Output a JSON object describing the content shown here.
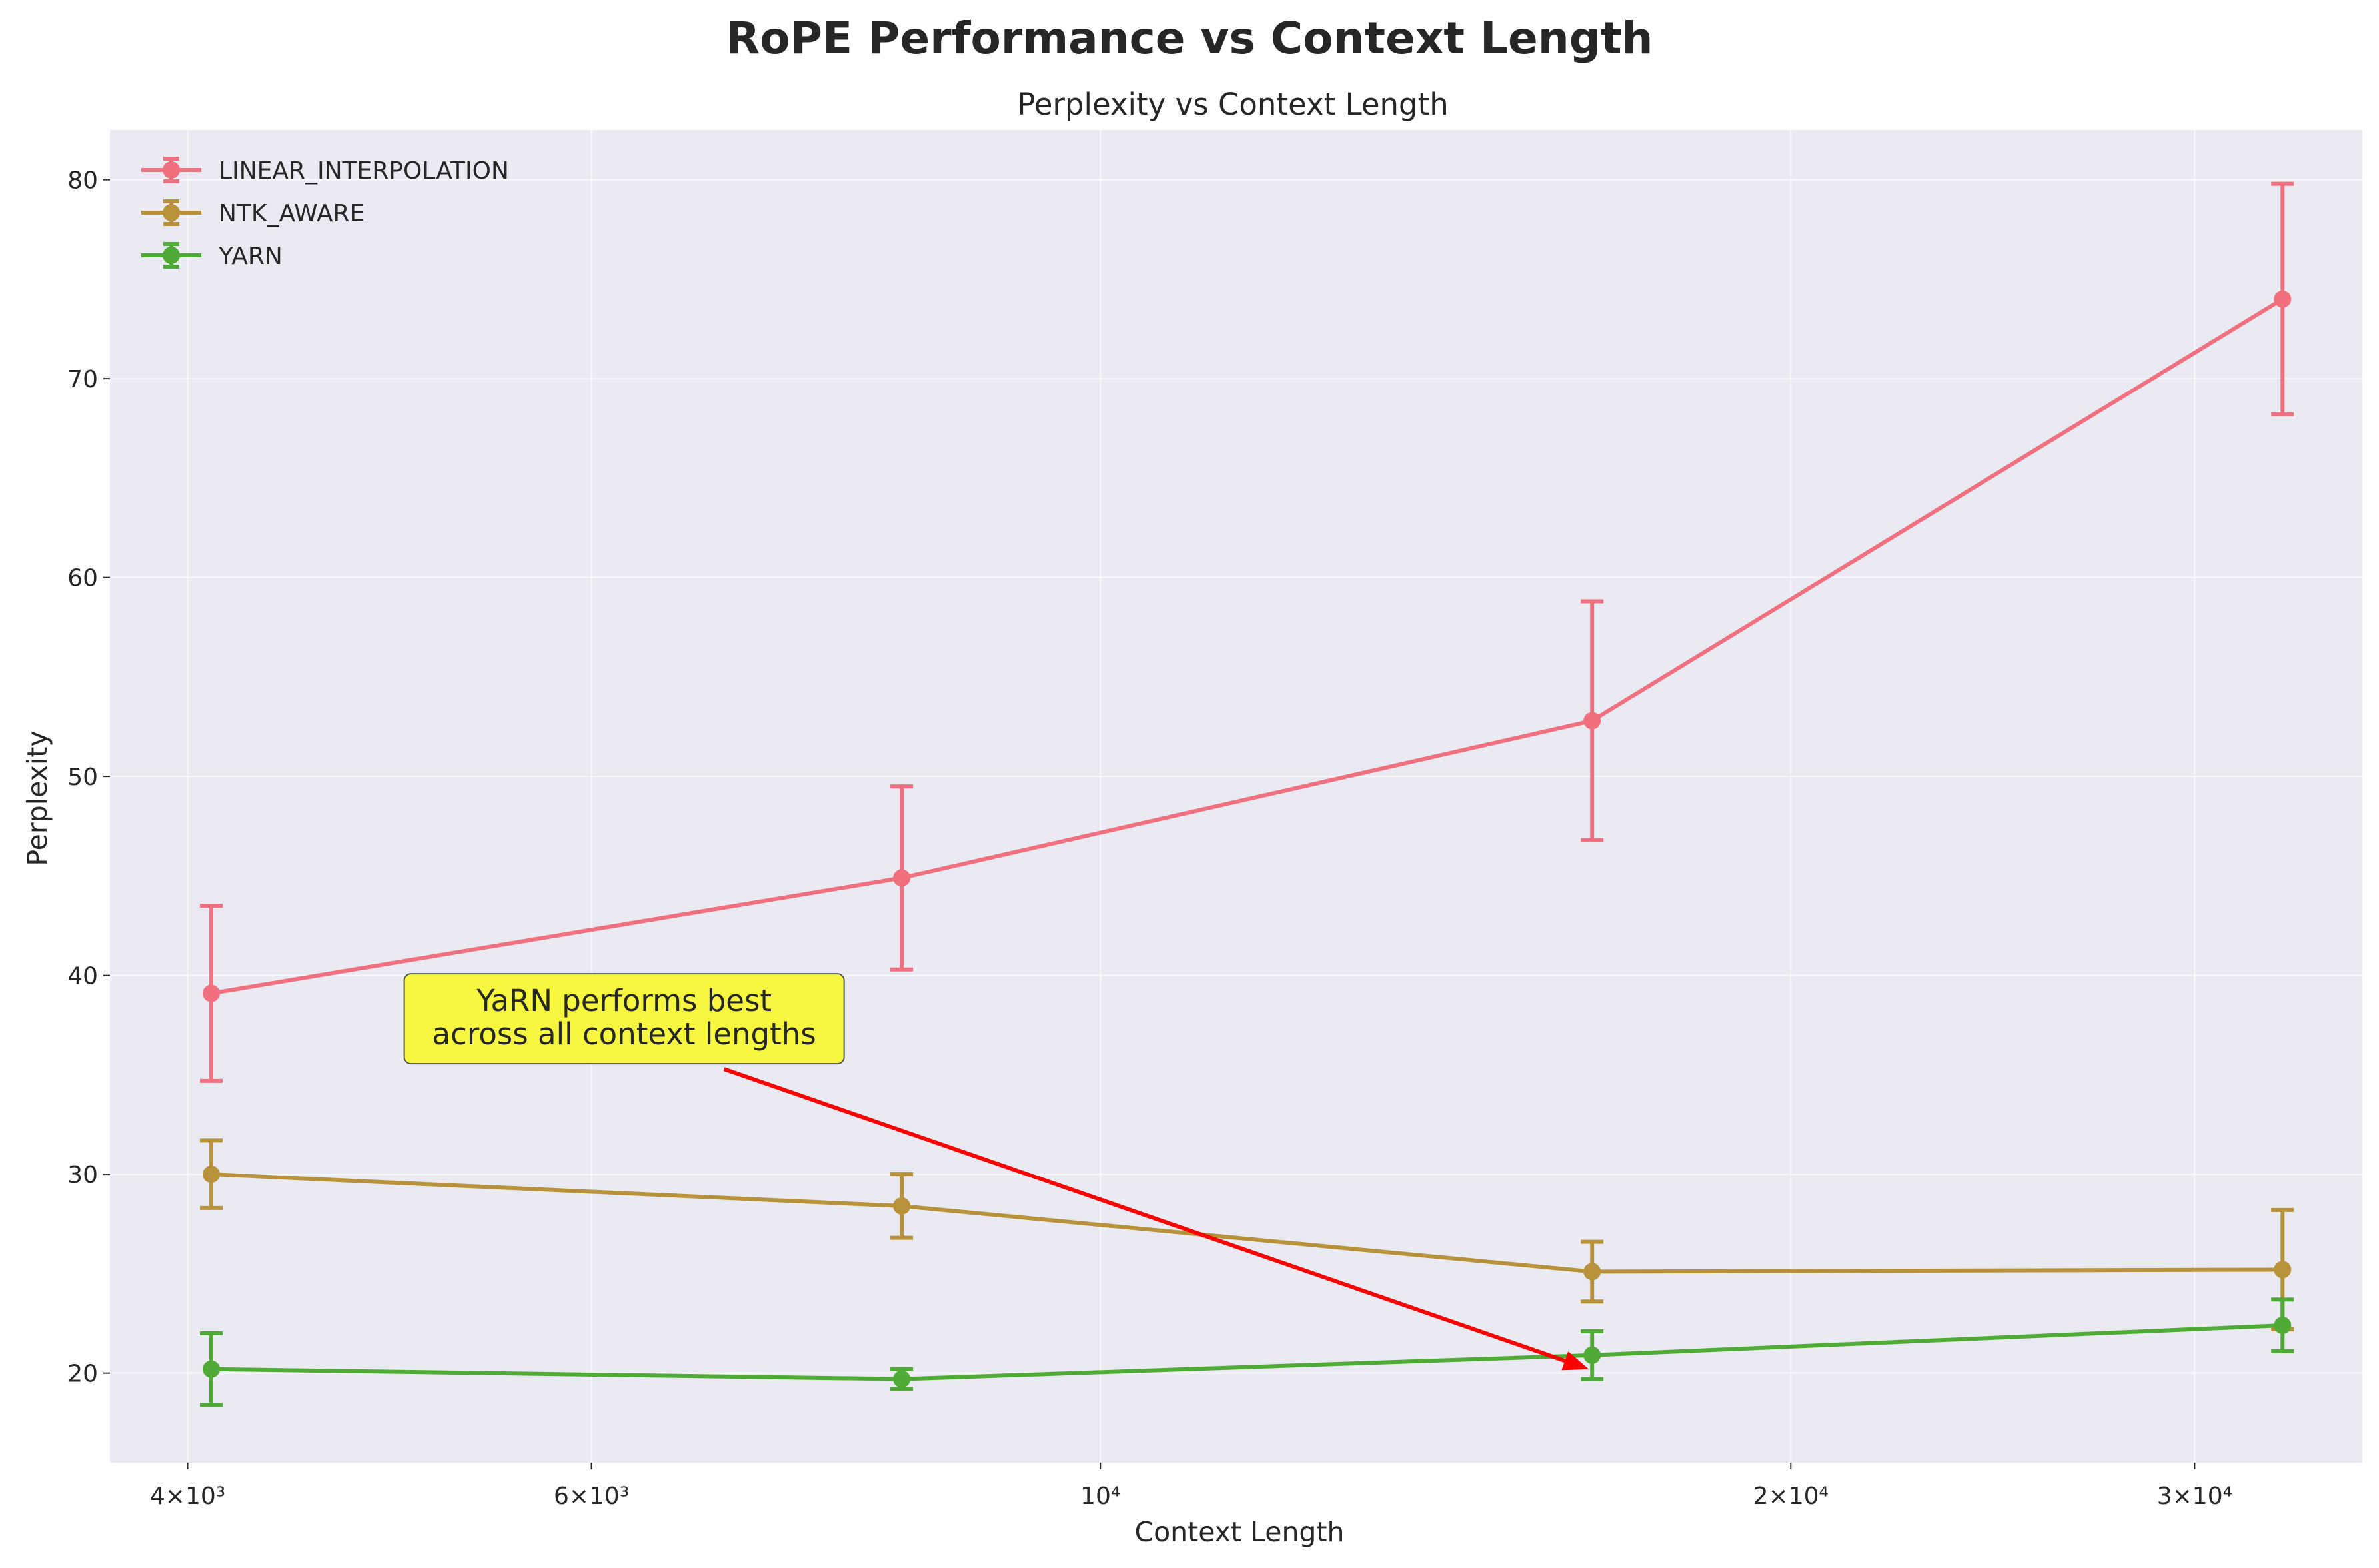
{
  "colors": {
    "background": "#EAEAF2",
    "grid": "#FFFFFF",
    "annotation_box": "#F7F740",
    "arrow": "#FF0000"
  },
  "chart_data": {
    "type": "line",
    "title": "RoPE Performance vs Context Length",
    "subtitle": "Perplexity vs Context Length",
    "xlabel": "Context Length",
    "ylabel": "Perplexity",
    "xscale": "log",
    "xlim": [
      3700,
      35500
    ],
    "ylim": [
      15.5,
      82.5
    ],
    "grid": true,
    "legend_position": "top-left",
    "x": [
      4096,
      8192,
      16384,
      32768
    ],
    "x_ticks": [
      {
        "value": 4000,
        "label": "4×10³"
      },
      {
        "value": 6000,
        "label": "6×10³"
      },
      {
        "value": 10000,
        "label": "10⁴"
      },
      {
        "value": 20000,
        "label": "2×10⁴"
      },
      {
        "value": 30000,
        "label": "3×10⁴"
      }
    ],
    "y_ticks": [
      20,
      30,
      40,
      50,
      60,
      70,
      80
    ],
    "series": [
      {
        "name": "LINEAR_INTERPOLATION",
        "color": "#F0707F",
        "values": [
          39.1,
          44.9,
          52.8,
          74.0
        ],
        "errors": [
          4.4,
          4.6,
          6.0,
          5.8
        ]
      },
      {
        "name": "NTK_AWARE",
        "color": "#B8923A",
        "values": [
          30.0,
          28.4,
          25.1,
          25.2
        ],
        "errors": [
          1.7,
          1.6,
          1.5,
          3.0
        ]
      },
      {
        "name": "YARN",
        "color": "#4FAB35",
        "values": [
          20.2,
          19.7,
          20.9,
          22.4
        ],
        "errors": [
          1.8,
          0.5,
          1.2,
          1.3
        ]
      }
    ],
    "annotation": {
      "text_lines": [
        "YaRN performs best",
        "across all context lengths"
      ],
      "text_x": 6200,
      "text_y": 36.5,
      "arrow_x": 16384,
      "arrow_y": 20.2
    }
  }
}
